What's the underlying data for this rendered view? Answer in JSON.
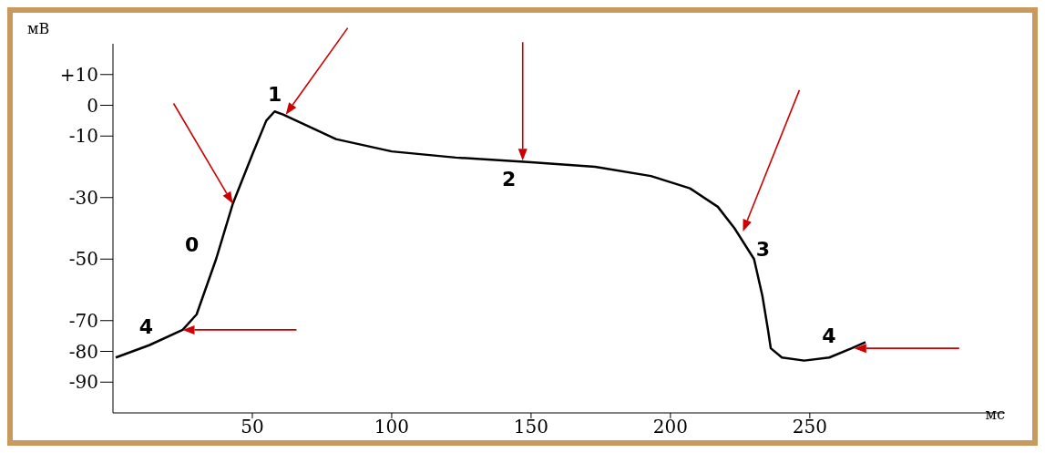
{
  "chart_data": {
    "type": "line",
    "xlabel": "мс",
    "ylabel": "мВ",
    "x": [
      1,
      13,
      25,
      30,
      37,
      43,
      50,
      55,
      58,
      61,
      67,
      80,
      100,
      123,
      150,
      173,
      193,
      207,
      217,
      223,
      230,
      233,
      235,
      236,
      240,
      248,
      257,
      265,
      270
    ],
    "values": [
      -82,
      -78,
      -73,
      -68,
      -50,
      -32,
      -16,
      -5,
      -2,
      -3,
      -5.5,
      -11,
      -15,
      -17,
      -18.5,
      -20,
      -23,
      -27,
      -33,
      -40,
      -50,
      -62,
      -73,
      -79,
      -82,
      -83,
      -82,
      -79,
      -77
    ],
    "color": "#000000",
    "xlim": [
      0,
      320
    ],
    "xticks": [
      50,
      100,
      150,
      200,
      250
    ],
    "ylim": [
      -100,
      20
    ],
    "yticks": [
      {
        "value": 10,
        "label": "+10"
      },
      0,
      -10,
      -30,
      -50,
      -70,
      -80,
      -90
    ],
    "grid": false,
    "annotations": [
      {
        "text": "0",
        "x": 43,
        "y": -32
      },
      {
        "text": "1",
        "x": 62,
        "y": -3
      },
      {
        "text": "2",
        "x": 147,
        "y": -18
      },
      {
        "text": "3",
        "x": 226,
        "y": -41
      },
      {
        "text": "4",
        "x": 25,
        "y": -73
      },
      {
        "text": "4",
        "x": 266,
        "y": -79
      }
    ]
  }
}
